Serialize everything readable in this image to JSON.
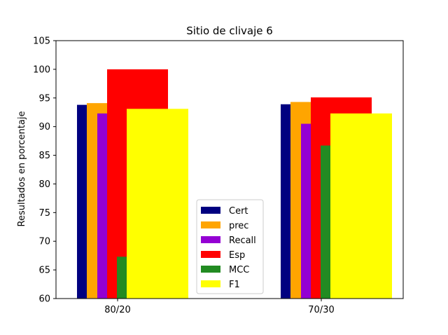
{
  "chart_data": {
    "type": "bar",
    "title": "Sitio de clivaje 6",
    "xlabel": "",
    "ylabel": "Resultados en porcentaje",
    "ylim": [
      60,
      105
    ],
    "yticks": [
      60,
      65,
      70,
      75,
      80,
      85,
      90,
      95,
      100,
      105
    ],
    "categories": [
      "80/20",
      "70/30"
    ],
    "grid": false,
    "legend_position": "lower-center",
    "series": [
      {
        "name": "Cert",
        "color": "#000080",
        "values": [
          93.8,
          93.9
        ]
      },
      {
        "name": "prec",
        "color": "#ffa500",
        "values": [
          94.1,
          94.3
        ]
      },
      {
        "name": "Recall",
        "color": "#9400d3",
        "values": [
          92.3,
          90.5
        ]
      },
      {
        "name": "Esp",
        "color": "#ff0000",
        "values": [
          100.0,
          95.1
        ]
      },
      {
        "name": "MCC",
        "color": "#228b22",
        "values": [
          67.3,
          86.7
        ]
      },
      {
        "name": "F1",
        "color": "#ffff00",
        "values": [
          93.1,
          92.3
        ]
      }
    ]
  }
}
